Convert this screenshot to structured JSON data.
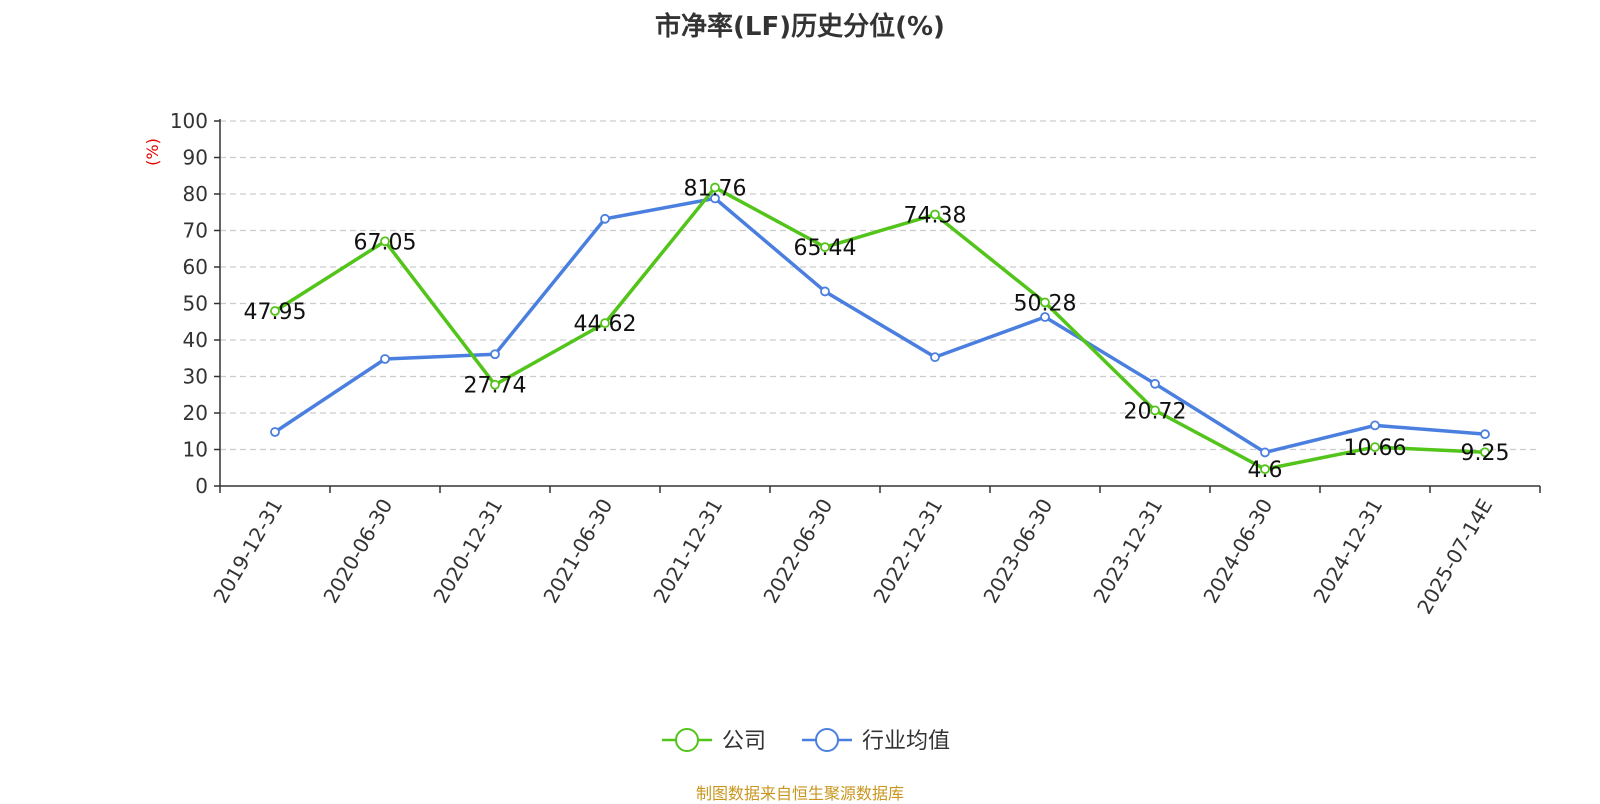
{
  "colors": {
    "company": "#52c41a",
    "industry": "#4a7fe0",
    "ylabel": "#e60000",
    "source": "#c8961e",
    "grid": "#cccccc",
    "axis": "#333333"
  },
  "chart_data": {
    "type": "line",
    "title": "市净率(LF)历史分位(%)",
    "ylabel": "(%)",
    "xlabel": "",
    "ylim": [
      0,
      100
    ],
    "yticks": [
      0,
      10,
      20,
      30,
      40,
      50,
      60,
      70,
      80,
      90,
      100
    ],
    "grid": true,
    "legend_position": "bottom",
    "categories": [
      "2019-12-31",
      "2020-06-30",
      "2020-12-31",
      "2021-06-30",
      "2021-12-31",
      "2022-06-30",
      "2022-12-31",
      "2023-06-30",
      "2023-12-31",
      "2024-06-30",
      "2024-12-31",
      "2025-07-14E"
    ],
    "series": [
      {
        "name": "公司",
        "color": "#52c41a",
        "values": [
          47.95,
          67.05,
          27.74,
          44.62,
          81.76,
          65.44,
          74.38,
          50.28,
          20.72,
          4.6,
          10.66,
          9.25
        ],
        "labels": [
          "47.95",
          "67.05",
          "27.74",
          "44.62",
          "81.76",
          "65.44",
          "74.38",
          "50.28",
          "20.72",
          "4.6",
          "10.66",
          "9.25"
        ]
      },
      {
        "name": "行业均值",
        "color": "#4a7fe0",
        "values": [
          14.8,
          34.8,
          36.1,
          73.2,
          78.8,
          53.3,
          35.3,
          46.3,
          28.0,
          9.2,
          16.6,
          14.2
        ]
      }
    ]
  },
  "footer": {
    "source": "制图数据来自恒生聚源数据库"
  }
}
